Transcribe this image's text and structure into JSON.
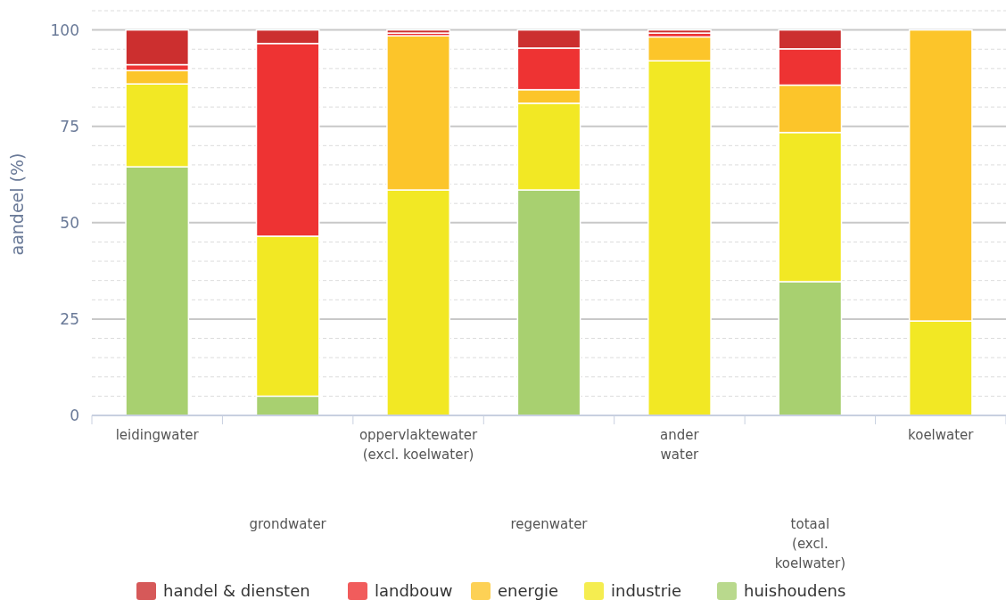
{
  "chart_data": {
    "type": "bar",
    "stacked": true,
    "ylabel": "aandeel (%)",
    "categories": [
      "leidingwater",
      "grondwater",
      "oppervlaktewater\n(excl. koelwater)",
      "regenwater",
      "ander\nwater",
      "totaal\n(excl.\nkoelwater)",
      "koelwater"
    ],
    "series": [
      {
        "name": "huishoudens",
        "color": "#a8d070",
        "values": [
          64.5,
          5,
          0,
          58.5,
          0,
          34.7,
          0
        ]
      },
      {
        "name": "industrie",
        "color": "#f2e824",
        "values": [
          21.5,
          41.5,
          58.5,
          22.5,
          92,
          38.7,
          24.5
        ]
      },
      {
        "name": "energie",
        "color": "#fcc52a",
        "values": [
          3.5,
          0,
          40,
          3.5,
          6.2,
          12.3,
          75.5
        ]
      },
      {
        "name": "landbouw",
        "color": "#ee3333",
        "values": [
          1.5,
          50,
          0.7,
          10.8,
          1,
          9.4,
          0
        ]
      },
      {
        "name": "handel & diensten",
        "color": "#cc2f2f",
        "values": [
          9,
          3.5,
          0.8,
          4.7,
          0.8,
          4.9,
          0
        ]
      }
    ],
    "ylim": [
      0,
      105
    ],
    "yticks": [
      0,
      {
        "value": 5,
        "label": null
      },
      {
        "value": 10,
        "label": null
      },
      {
        "value": 15,
        "label": null
      },
      {
        "value": 20,
        "label": null
      },
      25,
      {
        "value": 30,
        "label": null
      },
      {
        "value": 35,
        "label": null
      },
      {
        "value": 40,
        "label": null
      },
      {
        "value": 45,
        "label": null
      },
      50,
      {
        "value": 55,
        "label": null
      },
      {
        "value": 60,
        "label": null
      },
      {
        "value": 65,
        "label": null
      },
      {
        "value": 70,
        "label": null
      },
      75,
      {
        "value": 80,
        "label": null
      },
      {
        "value": 85,
        "label": null
      },
      {
        "value": 90,
        "label": null
      },
      {
        "value": 95,
        "label": null
      },
      100,
      {
        "value": 105,
        "label": null
      }
    ],
    "grid": "y",
    "legend": "bottom"
  }
}
